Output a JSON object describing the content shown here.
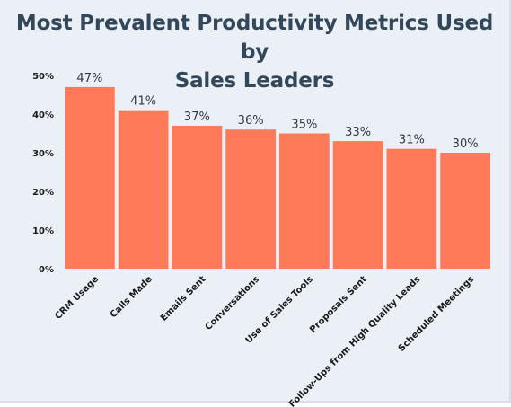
{
  "chart_data": {
    "type": "bar",
    "title_lines": [
      "Most Prevalent Productivity Metrics Used by",
      "Sales Leaders"
    ],
    "categories": [
      "CRM Usage",
      "Calls Made",
      "Emails Sent",
      "Conversations",
      "Use of Sales Tools",
      "Proposals Sent",
      "Follow-Ups from High Quality Leads",
      "Scheduled Meetings"
    ],
    "values": [
      47,
      41,
      37,
      36,
      35,
      33,
      31,
      30
    ],
    "data_labels": [
      "47%",
      "41%",
      "37%",
      "36%",
      "35%",
      "33%",
      "31%",
      "30%"
    ],
    "y_ticks": [
      0,
      10,
      20,
      30,
      40,
      50
    ],
    "y_tick_labels": [
      "0%",
      "10%",
      "20%",
      "30%",
      "40%",
      "50%"
    ],
    "ylim": [
      0,
      50
    ],
    "grid": false,
    "legend": "none",
    "bar_color": "#ff7a59",
    "background_color": "#eaf0f6",
    "title_color": "#33475b"
  }
}
